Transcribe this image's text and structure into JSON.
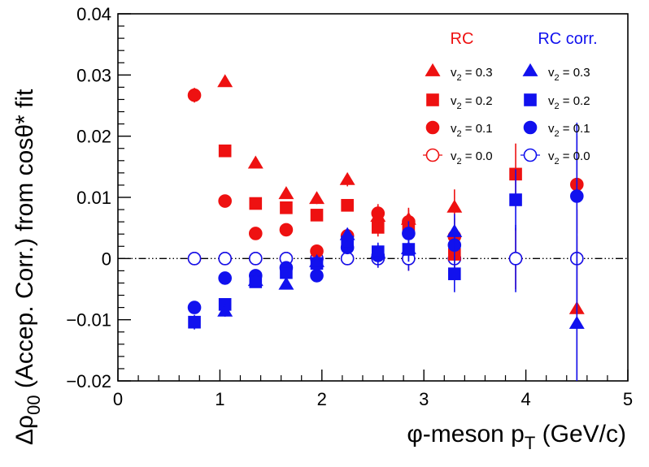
{
  "chart_data": {
    "type": "scatter",
    "title": "",
    "xlabel": "φ-meson p",
    "xlabel_sub": "T",
    "xlabel_tail": " (GeV/c)",
    "ylabel_main": "Δρ",
    "ylabel_sub": "00",
    "ylabel_tail": " (Accep. Corr.) from cosθ* fit",
    "xlim": [
      0,
      5
    ],
    "ylim": [
      -0.02,
      0.04
    ],
    "xticks": [
      0,
      1,
      2,
      3,
      4,
      5
    ],
    "xtick_labels": [
      "0",
      "1",
      "2",
      "3",
      "4",
      "5"
    ],
    "yticks": [
      -0.02,
      -0.01,
      0,
      0.01,
      0.02,
      0.03,
      0.04
    ],
    "ytick_labels": [
      "−0.02",
      "−0.01",
      "0",
      "0.01",
      "0.02",
      "0.03",
      "0.04"
    ],
    "reference_line_y": 0,
    "legend": {
      "placement": "top-right",
      "group_titles": [
        {
          "label": "RC",
          "color": "#ee1111"
        },
        {
          "label": "RC corr.",
          "color": "#1111ee"
        }
      ],
      "entries": [
        {
          "group": 0,
          "marker": "triangle",
          "filled": true,
          "color": "#ee1111",
          "text_pre": "v",
          "text_sub": "2",
          "text_post": " = 0.3"
        },
        {
          "group": 0,
          "marker": "square",
          "filled": true,
          "color": "#ee1111",
          "text_pre": "v",
          "text_sub": "2",
          "text_post": " = 0.2"
        },
        {
          "group": 0,
          "marker": "circle",
          "filled": true,
          "color": "#ee1111",
          "text_pre": "v",
          "text_sub": "2",
          "text_post": " = 0.1"
        },
        {
          "group": 0,
          "marker": "circle",
          "filled": false,
          "color": "#ee1111",
          "text_pre": "v",
          "text_sub": "2",
          "text_post": " = 0.0"
        },
        {
          "group": 1,
          "marker": "triangle",
          "filled": true,
          "color": "#1111ee",
          "text_pre": "v",
          "text_sub": "2",
          "text_post": " = 0.3"
        },
        {
          "group": 1,
          "marker": "square",
          "filled": true,
          "color": "#1111ee",
          "text_pre": "v",
          "text_sub": "2",
          "text_post": " = 0.2"
        },
        {
          "group": 1,
          "marker": "circle",
          "filled": true,
          "color": "#1111ee",
          "text_pre": "v",
          "text_sub": "2",
          "text_post": " = 0.1"
        },
        {
          "group": 1,
          "marker": "circle",
          "filled": false,
          "color": "#1111ee",
          "text_pre": "v",
          "text_sub": "2",
          "text_post": " = 0.0"
        }
      ]
    },
    "x": [
      0.75,
      1.05,
      1.35,
      1.65,
      1.95,
      2.25,
      2.55,
      2.85,
      3.3,
      3.9,
      4.5
    ],
    "series": [
      {
        "group": "RC",
        "v2": "0.3",
        "marker": "triangle",
        "filled": true,
        "color": "#ee1111",
        "points": [
          [
            1.05,
            0.0288,
            0
          ],
          [
            1.35,
            0.0155,
            0
          ],
          [
            1.65,
            0.0105,
            0.0005
          ],
          [
            1.95,
            0.0097,
            0.0008
          ],
          [
            2.25,
            0.0128,
            0.001
          ],
          [
            2.55,
            0.0068,
            0.0015
          ],
          [
            2.85,
            0.0063,
            0.002
          ],
          [
            3.3,
            0.0083,
            0.003
          ],
          [
            4.5,
            -0.0083,
            0.012
          ]
        ]
      },
      {
        "group": "RC",
        "v2": "0.2",
        "marker": "square",
        "filled": true,
        "color": "#ee1111",
        "points": [
          [
            1.05,
            0.0176,
            0
          ],
          [
            1.35,
            0.009,
            0
          ],
          [
            1.65,
            0.0083,
            0.0005
          ],
          [
            1.95,
            0.0071,
            0.0008
          ],
          [
            2.25,
            0.0087,
            0.001
          ],
          [
            2.55,
            0.0051,
            0.0015
          ],
          [
            2.85,
            0.0054,
            0.002
          ],
          [
            3.3,
            0.0007,
            0.003
          ],
          [
            3.9,
            0.0138,
            0.005
          ]
        ]
      },
      {
        "group": "RC",
        "v2": "0.1",
        "marker": "circle",
        "filled": true,
        "color": "#ee1111",
        "points": [
          [
            0.75,
            0.0267,
            0.0012
          ],
          [
            1.05,
            0.0094,
            0
          ],
          [
            1.35,
            0.0041,
            0
          ],
          [
            1.65,
            0.0047,
            0.0005
          ],
          [
            1.95,
            0.0012,
            0.0008
          ],
          [
            2.25,
            0.0037,
            0.001
          ],
          [
            2.55,
            0.0074,
            0.0015
          ],
          [
            2.85,
            0.006,
            0.002
          ],
          [
            3.3,
            0.0036,
            0.003
          ],
          [
            4.5,
            0.0121,
            0.008
          ]
        ]
      },
      {
        "group": "RC",
        "v2": "0.0",
        "marker": "circle",
        "filled": false,
        "color": "#ee1111",
        "points": [
          [
            0.75,
            0,
            0.0008
          ],
          [
            1.05,
            0,
            0
          ],
          [
            1.35,
            0,
            0
          ],
          [
            1.65,
            0,
            0.0005
          ],
          [
            1.95,
            0,
            0.0008
          ],
          [
            2.25,
            0,
            0.001
          ],
          [
            2.55,
            0,
            0.0015
          ],
          [
            2.85,
            0,
            0.002
          ],
          [
            3.3,
            0,
            0.003
          ],
          [
            3.9,
            0,
            0.005
          ],
          [
            4.5,
            0,
            0.008
          ]
        ]
      },
      {
        "group": "RC corr.",
        "v2": "0.3",
        "marker": "triangle",
        "filled": true,
        "color": "#1111ee",
        "points": [
          [
            1.05,
            -0.0087,
            0.0008
          ],
          [
            1.35,
            -0.0037,
            0
          ],
          [
            1.65,
            -0.0043,
            0.0005
          ],
          [
            1.95,
            -0.0006,
            0.0008
          ],
          [
            2.25,
            0.0038,
            0.001
          ],
          [
            2.55,
            0.0009,
            0.0015
          ],
          [
            2.85,
            0.0015,
            0.002
          ],
          [
            3.3,
            0.0043,
            0.003
          ],
          [
            4.5,
            -0.0107,
            0.012
          ]
        ]
      },
      {
        "group": "RC corr.",
        "v2": "0.2",
        "marker": "square",
        "filled": true,
        "color": "#1111ee",
        "points": [
          [
            0.75,
            -0.0104,
            0.0012
          ],
          [
            1.05,
            -0.0075,
            0
          ],
          [
            1.35,
            -0.0038,
            0
          ],
          [
            1.65,
            -0.0023,
            0.0005
          ],
          [
            1.95,
            -0.0008,
            0.0008
          ],
          [
            2.25,
            0.0027,
            0.001
          ],
          [
            2.55,
            0.0011,
            0.0015
          ],
          [
            2.85,
            0.0015,
            0.002
          ],
          [
            3.3,
            -0.0025,
            0.003
          ],
          [
            3.9,
            0.0096,
            0.005
          ]
        ]
      },
      {
        "group": "RC corr.",
        "v2": "0.1",
        "marker": "circle",
        "filled": true,
        "color": "#1111ee",
        "points": [
          [
            0.75,
            -0.008,
            0.0008
          ],
          [
            1.05,
            -0.0032,
            0
          ],
          [
            1.35,
            -0.0028,
            0
          ],
          [
            1.65,
            -0.0015,
            0.0005
          ],
          [
            1.95,
            -0.0028,
            0.0008
          ],
          [
            2.25,
            0.0018,
            0.001
          ],
          [
            2.55,
            0.0005,
            0.0015
          ],
          [
            2.85,
            0.0041,
            0.002
          ],
          [
            3.3,
            0.0022,
            0.003
          ],
          [
            4.5,
            0.0102,
            0.012
          ]
        ]
      },
      {
        "group": "RC corr.",
        "v2": "0.0",
        "marker": "circle",
        "filled": false,
        "color": "#1111ee",
        "points": [
          [
            0.75,
            0,
            0.0008
          ],
          [
            1.05,
            0,
            0
          ],
          [
            1.35,
            0,
            0
          ],
          [
            1.65,
            0,
            0.0005
          ],
          [
            1.95,
            0,
            0.0008
          ],
          [
            2.25,
            0,
            0.001
          ],
          [
            2.55,
            0,
            0.0015
          ],
          [
            2.85,
            0,
            0.002
          ],
          [
            3.3,
            0,
            0.003
          ],
          [
            3.9,
            0,
            0.0055
          ],
          [
            4.5,
            0,
            0.008
          ]
        ]
      }
    ]
  }
}
